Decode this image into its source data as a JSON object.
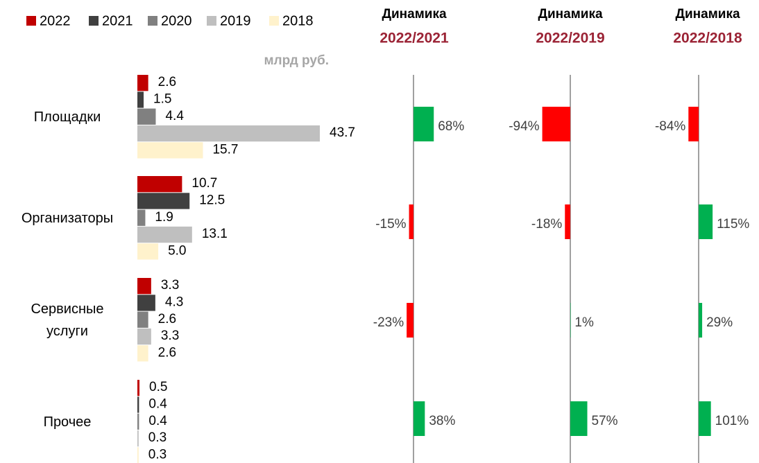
{
  "chart_data": [
    {
      "type": "bar",
      "unit": "млрд руб.",
      "categories": [
        "Площадки",
        "Организаторы",
        "Сервисные услуги",
        "Прочее"
      ],
      "series": [
        {
          "name": "2022",
          "color": "#c00000",
          "values": [
            2.6,
            10.7,
            3.3,
            0.5
          ]
        },
        {
          "name": "2021",
          "color": "#404040",
          "values": [
            1.5,
            12.5,
            4.3,
            0.4
          ]
        },
        {
          "name": "2020",
          "color": "#808080",
          "values": [
            4.4,
            1.9,
            2.6,
            0.4
          ]
        },
        {
          "name": "2019",
          "color": "#bfbfbf",
          "values": [
            43.7,
            13.1,
            3.3,
            0.3
          ]
        },
        {
          "name": "2018",
          "color": "#fff2cc",
          "values": [
            15.7,
            5,
            2.6,
            0.3
          ],
          "value_labels": [
            "15.7",
            "5.0",
            "2.6",
            "0.3"
          ]
        }
      ]
    },
    {
      "type": "bar",
      "title": "Динамика",
      "subtitle": "2022/2021",
      "color_positive": "#00b050",
      "color_negative": "#ff0000",
      "values": [
        68,
        -15,
        -23,
        38
      ],
      "value_labels": [
        "68%",
        "-15%",
        "-23%",
        "38%"
      ]
    },
    {
      "type": "bar",
      "title": "Динамика",
      "subtitle": "2022/2019",
      "color_positive": "#00b050",
      "color_negative": "#ff0000",
      "values": [
        -94,
        -18,
        1,
        57
      ],
      "value_labels": [
        "-94%",
        "-18%",
        "1%",
        "57%"
      ]
    },
    {
      "type": "bar",
      "title": "Динамика",
      "subtitle": "2022/2018",
      "color_positive": "#00b050",
      "color_negative": "#ff0000",
      "values": [
        -84,
        115,
        29,
        101
      ],
      "value_labels": [
        "-84%",
        "115%",
        "29%",
        "101%"
      ]
    }
  ]
}
